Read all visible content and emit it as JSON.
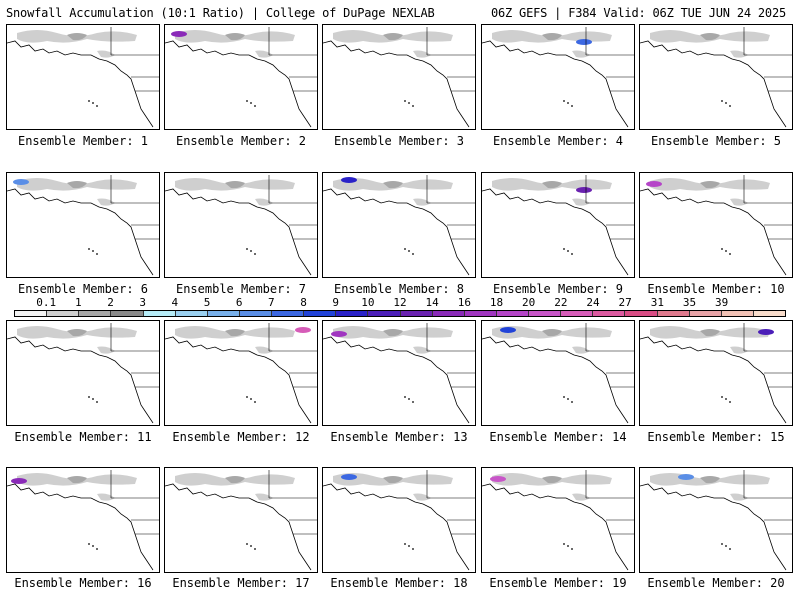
{
  "header": {
    "left": "Snowfall Accumulation (10:1 Ratio) | College of DuPage NEXLAB",
    "right": "06Z GEFS | F384 Valid: 06Z TUE JUN 24 2025"
  },
  "colorbar": {
    "ticks": [
      "0.1",
      "1",
      "2",
      "3",
      "4",
      "5",
      "6",
      "7",
      "8",
      "9",
      "10",
      "12",
      "14",
      "16",
      "18",
      "20",
      "22",
      "24",
      "27",
      "31",
      "35",
      "39"
    ],
    "colors": [
      "#f2f2f2",
      "#cfcfcf",
      "#a8a8a8",
      "#8a8a8a",
      "#b6ecf7",
      "#9ad0f0",
      "#78b0ea",
      "#5a8ee6",
      "#3c68e2",
      "#2143d8",
      "#2a22c8",
      "#4b1eb8",
      "#6a22b0",
      "#8a2ab8",
      "#a035c0",
      "#b545c8",
      "#c855c8",
      "#d65cb8",
      "#dc5aa0",
      "#d84c84",
      "#e07a8e",
      "#e9a4a8",
      "#f2c2b6",
      "#f8dccb"
    ]
  },
  "panels": [
    {
      "label": "Ensemble Member: 1"
    },
    {
      "label": "Ensemble Member: 2"
    },
    {
      "label": "Ensemble Member: 3"
    },
    {
      "label": "Ensemble Member: 4"
    },
    {
      "label": "Ensemble Member: 5"
    },
    {
      "label": "Ensemble Member: 6"
    },
    {
      "label": "Ensemble Member: 7"
    },
    {
      "label": "Ensemble Member: 8"
    },
    {
      "label": "Ensemble Member: 9"
    },
    {
      "label": "Ensemble Member: 10"
    },
    {
      "label": "Ensemble Member: 11"
    },
    {
      "label": "Ensemble Member: 12"
    },
    {
      "label": "Ensemble Member: 13"
    },
    {
      "label": "Ensemble Member: 14"
    },
    {
      "label": "Ensemble Member: 15"
    },
    {
      "label": "Ensemble Member: 16"
    },
    {
      "label": "Ensemble Member: 17"
    },
    {
      "label": "Ensemble Member: 18"
    },
    {
      "label": "Ensemble Member: 19"
    },
    {
      "label": "Ensemble Member: 20"
    }
  ]
}
